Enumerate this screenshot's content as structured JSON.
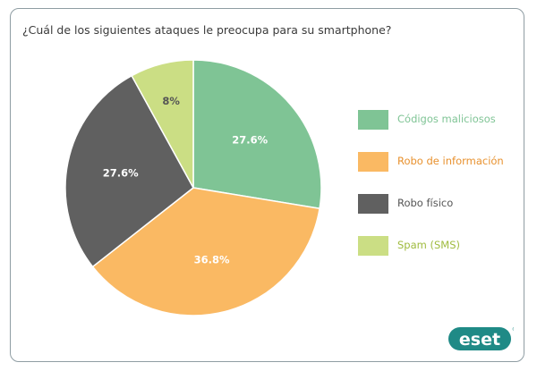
{
  "chart_data": {
    "type": "pie",
    "title": "¿Cuál de los siguientes ataques le preocupa para su smartphone?",
    "slices": [
      {
        "name": "Códigos maliciosos",
        "value": 27.6,
        "label": "27.6%",
        "color": "#7fc495",
        "label_color": "#ffffff",
        "legend_color": "#7fc495"
      },
      {
        "name": "Robo de información",
        "value": 36.8,
        "label": "36.8%",
        "color": "#fab963",
        "label_color": "#ffffff",
        "legend_color": "#e8912e"
      },
      {
        "name": "Robo físico",
        "value": 27.6,
        "label": "27.6%",
        "color": "#606060",
        "label_color": "#ffffff",
        "legend_color": "#555555"
      },
      {
        "name": "Spam (SMS)",
        "value": 8,
        "label": "8%",
        "color": "#cbde84",
        "label_color": "#555555",
        "legend_color": "#9fbb3e"
      }
    ],
    "start_angle_deg": 0,
    "direction": "clockwise",
    "legend_position": "right"
  },
  "logo": {
    "text": "eset",
    "color": "#1f8a86",
    "registered_mark": "®"
  }
}
